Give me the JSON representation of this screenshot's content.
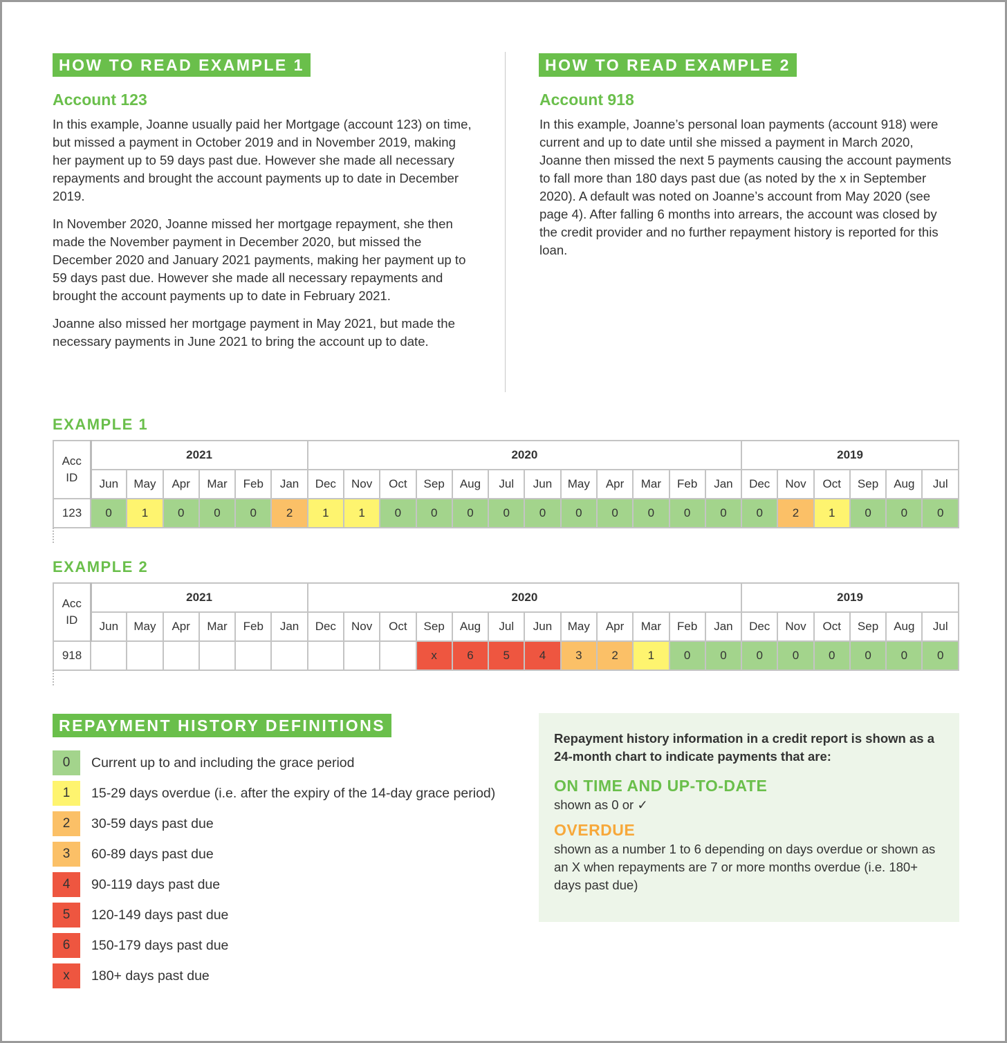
{
  "example1": {
    "heading": "HOW TO READ EXAMPLE 1",
    "account": "Account 123",
    "paragraphs": [
      "In this example, Joanne usually paid her Mortgage (account 123) on time, but missed a payment in October 2019 and in November 2019, making her payment up to 59 days past due. However she made all necessary repayments and brought the account payments up to date in December 2019.",
      "In November 2020, Joanne missed her mortgage repayment, she then made the November payment in December 2020, but missed the December 2020 and January 2021 payments, making her payment up to 59 days past due. However she made all necessary repayments and brought the account payments up to date in February 2021.",
      "Joanne also missed her mortgage payment in May 2021, but made the necessary payments in June 2021 to bring the account up to date."
    ]
  },
  "example2": {
    "heading": "HOW TO READ EXAMPLE 2",
    "account": "Account 918",
    "paragraphs": [
      "In this example, Joanne’s personal loan payments (account 918) were current and up to date until she missed a payment in March 2020, Joanne then missed the next 5 payments causing the account payments to fall more than 180 days past due (as noted by the x in September 2020). A default was noted on Joanne’s account from May 2020 (see page 4). After falling 6 months into arrears, the account was closed by the credit provider and no further repayment history is reported for this loan."
    ]
  },
  "tables": [
    {
      "label": "EXAMPLE 1",
      "acc_header": [
        "Acc",
        "ID"
      ],
      "years": [
        {
          "year": "2021",
          "span": 6
        },
        {
          "year": "2020",
          "span": 12
        },
        {
          "year": "2019",
          "span": 6
        }
      ],
      "months": [
        "Jun",
        "May",
        "Apr",
        "Mar",
        "Feb",
        "Jan",
        "Dec",
        "Nov",
        "Oct",
        "Sep",
        "Aug",
        "Jul",
        "Jun",
        "May",
        "Apr",
        "Mar",
        "Feb",
        "Jan",
        "Dec",
        "Nov",
        "Oct",
        "Sep",
        "Aug",
        "Jul"
      ],
      "account_id": "123",
      "values": [
        "0",
        "1",
        "0",
        "0",
        "0",
        "2",
        "1",
        "1",
        "0",
        "0",
        "0",
        "0",
        "0",
        "0",
        "0",
        "0",
        "0",
        "0",
        "0",
        "2",
        "1",
        "0",
        "0",
        "0"
      ]
    },
    {
      "label": "EXAMPLE 2",
      "acc_header": [
        "Acc",
        "ID"
      ],
      "years": [
        {
          "year": "2021",
          "span": 6
        },
        {
          "year": "2020",
          "span": 12
        },
        {
          "year": "2019",
          "span": 6
        }
      ],
      "months": [
        "Jun",
        "May",
        "Apr",
        "Mar",
        "Feb",
        "Jan",
        "Dec",
        "Nov",
        "Oct",
        "Sep",
        "Aug",
        "Jul",
        "Jun",
        "May",
        "Apr",
        "Mar",
        "Feb",
        "Jan",
        "Dec",
        "Nov",
        "Oct",
        "Sep",
        "Aug",
        "Jul"
      ],
      "account_id": "918",
      "values": [
        "",
        "",
        "",
        "",
        "",
        "",
        "",
        "",
        "",
        "x",
        "6",
        "5",
        "4",
        "3",
        "2",
        "1",
        "0",
        "0",
        "0",
        "0",
        "0",
        "0",
        "0",
        "0"
      ]
    }
  ],
  "definitions": {
    "heading": "REPAYMENT HISTORY DEFINITIONS",
    "items": [
      {
        "code": "0",
        "text": "Current up to and including the grace period"
      },
      {
        "code": "1",
        "text": "15-29 days overdue (i.e. after the expiry of the 14-day grace period)"
      },
      {
        "code": "2",
        "text": "30-59 days past due"
      },
      {
        "code": "3",
        "text": "60-89 days past due"
      },
      {
        "code": "4",
        "text": "90-119 days past due"
      },
      {
        "code": "5",
        "text": "120-149 days past due"
      },
      {
        "code": "6",
        "text": "150-179 days past due"
      },
      {
        "code": "x",
        "text": "180+ days past due"
      }
    ]
  },
  "info_box": {
    "intro": "Repayment history information in a credit report is shown as a 24-month chart to indicate payments that are:",
    "on_time_heading": "ON TIME AND UP-TO-DATE",
    "on_time_text": "shown as 0 or ✓",
    "overdue_heading": "OVERDUE",
    "overdue_text": "shown as a number 1 to 6 depending on days overdue or shown as an X when repayments are 7 or more months overdue (i.e. 180+ days past due)"
  },
  "colors": {
    "brand_green": "#6abf4b",
    "code_0": "#a3d48c",
    "code_1": "#fef46f",
    "code_2_3": "#fbc067",
    "code_4_plus": "#ee5640",
    "overdue_orange": "#f7a83a",
    "info_bg": "#edf5e9"
  }
}
